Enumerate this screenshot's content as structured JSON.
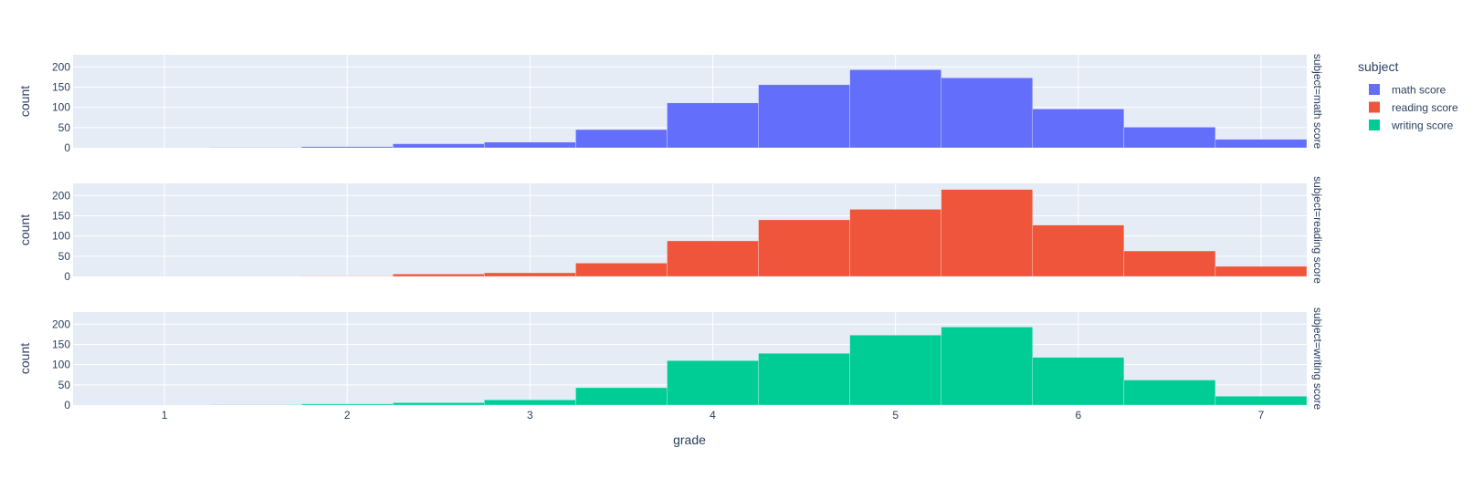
{
  "chart_data": {
    "type": "bar",
    "subtype": "faceted histogram",
    "xlabel": "grade",
    "ylabel": "count",
    "xlim": [
      0.5,
      7.25
    ],
    "ylim": [
      0,
      230
    ],
    "x_ticks": [
      1,
      2,
      3,
      4,
      5,
      6,
      7
    ],
    "y_ticks": [
      0,
      50,
      100,
      150,
      200
    ],
    "bin_width": 0.5,
    "bin_starts": [
      1.25,
      1.75,
      2.25,
      2.75,
      3.25,
      3.75,
      4.25,
      4.75,
      5.25,
      5.75,
      6.25,
      6.75
    ],
    "grid": true,
    "legend": {
      "title": "subject",
      "placement": "top-right",
      "items": [
        {
          "label": "math score",
          "color": "#636efa"
        },
        {
          "label": "reading score",
          "color": "#ef553b"
        },
        {
          "label": "writing score",
          "color": "#00cc96"
        }
      ]
    },
    "facets": [
      {
        "label": "subject=math score",
        "name": "math score",
        "color": "#636efa",
        "values": [
          1,
          3,
          10,
          14,
          45,
          111,
          156,
          193,
          173,
          96,
          51,
          21
        ]
      },
      {
        "label": "subject=reading score",
        "name": "reading score",
        "color": "#ef553b",
        "values": [
          0,
          1,
          6,
          9,
          33,
          88,
          140,
          166,
          215,
          127,
          63,
          25
        ]
      },
      {
        "label": "subject=writing score",
        "name": "writing score",
        "color": "#00cc96",
        "values": [
          1,
          3,
          6,
          13,
          43,
          110,
          128,
          173,
          193,
          118,
          62,
          22
        ]
      }
    ]
  }
}
